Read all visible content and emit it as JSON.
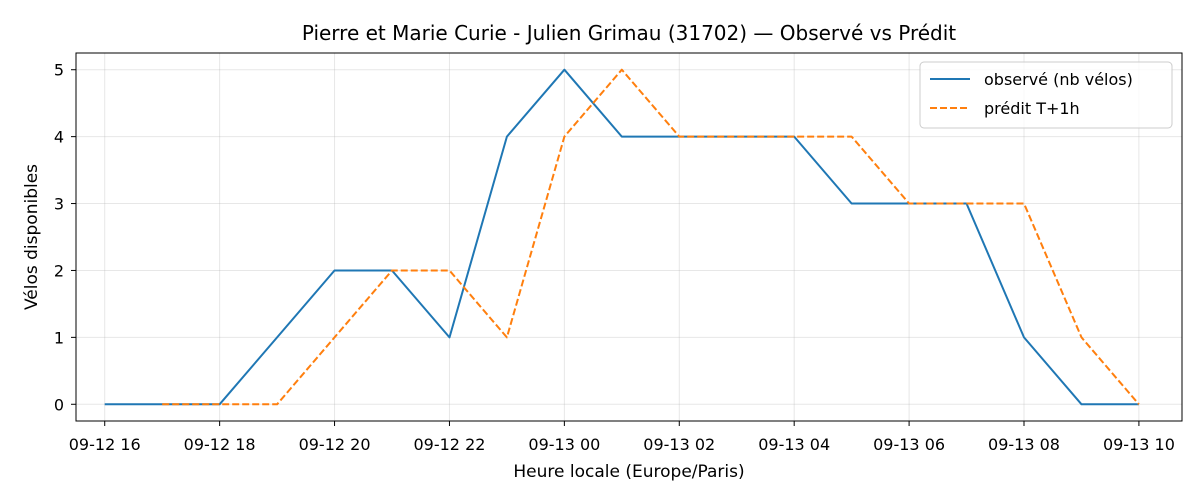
{
  "chart_data": {
    "type": "line",
    "title": "Pierre et Marie Curie - Julien Grimau (31702) — Observé vs Prédit",
    "xlabel": "Heure locale (Europe/Paris)",
    "ylabel": "Vélos disponibles",
    "x_tick_labels": [
      "09-12 16",
      "09-12 18",
      "09-12 20",
      "09-12 22",
      "09-13 00",
      "09-13 02",
      "09-13 04",
      "09-13 06",
      "09-13 08",
      "09-13 10"
    ],
    "y_tick_labels": [
      "0",
      "1",
      "2",
      "3",
      "4",
      "5"
    ],
    "x_range": [
      "09-12 15:30",
      "09-13 10:45"
    ],
    "ylim": [
      -0.25,
      5.25
    ],
    "grid": true,
    "legend_position": "top-right",
    "x": [
      "09-12 16:00",
      "09-12 17:00",
      "09-12 18:00",
      "09-12 19:00",
      "09-12 20:00",
      "09-12 21:00",
      "09-12 22:00",
      "09-12 23:00",
      "09-13 00:00",
      "09-13 01:00",
      "09-13 02:00",
      "09-13 03:00",
      "09-13 04:00",
      "09-13 05:00",
      "09-13 06:00",
      "09-13 07:00",
      "09-13 08:00",
      "09-13 09:00",
      "09-13 10:00"
    ],
    "series": [
      {
        "name": "observé (nb vélos)",
        "color": "#1f77b4",
        "style": "solid",
        "values": [
          0,
          0,
          0,
          1,
          2,
          2,
          1,
          4,
          5,
          4,
          4,
          4,
          4,
          3,
          3,
          3,
          1,
          0,
          0
        ]
      },
      {
        "name": "prédit T+1h",
        "color": "#ff7f0e",
        "style": "dashed",
        "values": [
          null,
          0,
          0,
          0,
          1,
          2,
          2,
          1,
          4,
          5,
          4,
          4,
          4,
          4,
          3,
          3,
          3,
          1,
          0
        ]
      }
    ]
  }
}
